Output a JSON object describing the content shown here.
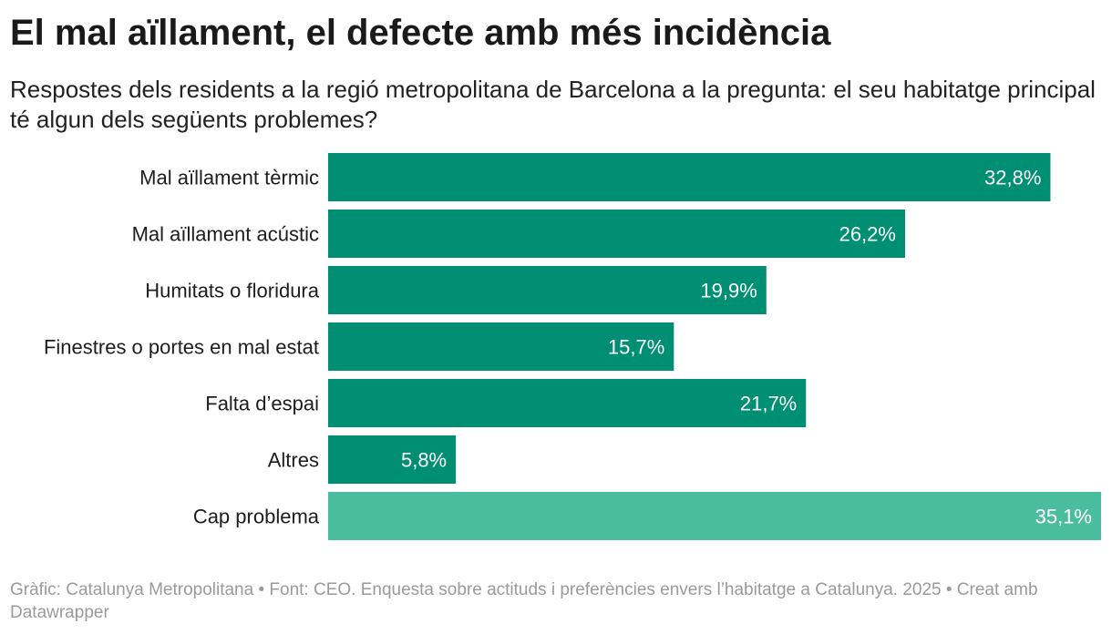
{
  "header": {
    "title": "El mal aïllament, el defecte amb més incidència",
    "subtitle": "Respostes dels residents a la regió metropolitana de Barcelona a la pregunta: el seu habitatge principal té algun dels següents problemes?"
  },
  "chart_data": {
    "type": "bar",
    "orientation": "horizontal",
    "categories": [
      "Mal aïllament tèrmic",
      "Mal aïllament acústic",
      "Humitats o floridura",
      "Finestres o portes en mal estat",
      "Falta d’espai",
      "Altres",
      "Cap problema"
    ],
    "values": [
      32.8,
      26.2,
      19.9,
      15.7,
      21.7,
      5.8,
      35.1
    ],
    "value_labels": [
      "32,8%",
      "26,2%",
      "19,9%",
      "15,7%",
      "21,7%",
      "5,8%",
      "35,1%"
    ],
    "bar_colors": [
      "#008f72",
      "#008f72",
      "#008f72",
      "#008f72",
      "#008f72",
      "#008f72",
      "#4bbd9f"
    ],
    "value_label_color": "#ffffff",
    "category_label_color": "#1d1d1d",
    "xlim": [
      0,
      35.1
    ],
    "grid": false,
    "legend": "none"
  },
  "footer": {
    "text": "Gràfic: Catalunya Metropolitana • Font: CEO. Enquesta sobre actituds i preferències envers l’habitatge a Catalunya. 2025 • Creat amb Datawrapper"
  }
}
